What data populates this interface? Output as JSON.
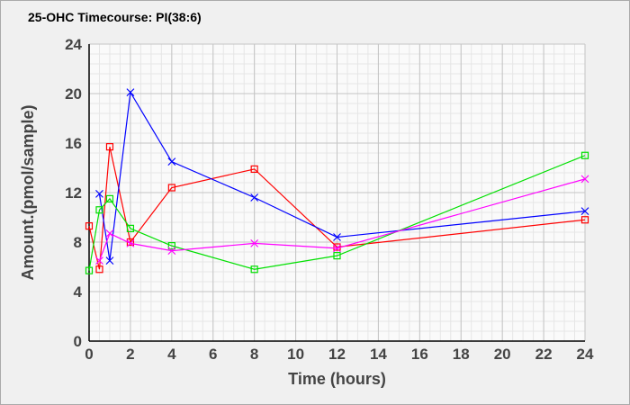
{
  "chart_data": {
    "type": "line",
    "title": "25-OHC Timecourse: PI(38:6)",
    "xlabel": "Time (hours)",
    "ylabel": "Amount.(pmol/sample)",
    "xlim": [
      0,
      24
    ],
    "ylim": [
      0,
      24
    ],
    "xticks": [
      0,
      2,
      4,
      6,
      8,
      10,
      12,
      14,
      16,
      18,
      20,
      22,
      24
    ],
    "yticks": [
      0,
      4,
      8,
      12,
      16,
      20,
      24
    ],
    "grid": true,
    "series": [
      {
        "name": "red",
        "color": "#ff0000",
        "marker": "square",
        "x": [
          0,
          0.5,
          1,
          2,
          4,
          8,
          12,
          24
        ],
        "y": [
          9.3,
          5.8,
          15.7,
          8.0,
          12.4,
          13.9,
          7.6,
          9.8
        ]
      },
      {
        "name": "blue",
        "color": "#0000ff",
        "marker": "x",
        "x": [
          0.5,
          1,
          2,
          4,
          8,
          12,
          24
        ],
        "y": [
          11.9,
          6.5,
          20.1,
          14.5,
          11.6,
          8.4,
          10.5
        ]
      },
      {
        "name": "green",
        "color": "#00e000",
        "marker": "square",
        "x": [
          0,
          0.5,
          1,
          2,
          4,
          8,
          12,
          24
        ],
        "y": [
          5.7,
          10.6,
          11.5,
          9.1,
          7.7,
          5.8,
          6.9,
          15.0
        ]
      },
      {
        "name": "magenta",
        "color": "#ff00ff",
        "marker": "x",
        "x": [
          0.5,
          1,
          2,
          4,
          8,
          12,
          24
        ],
        "y": [
          6.5,
          8.7,
          7.9,
          7.3,
          7.9,
          7.5,
          13.1
        ]
      }
    ]
  }
}
